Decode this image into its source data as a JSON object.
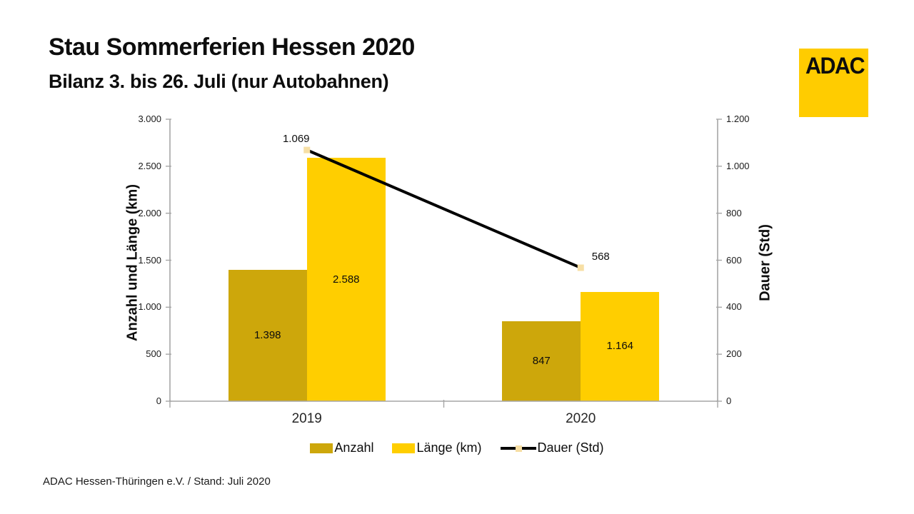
{
  "header": {
    "title": "Stau Sommerferien Hessen 2020",
    "subtitle": "Bilanz 3. bis 26. Juli (nur Autobahnen)"
  },
  "logo": {
    "text": "ADAC",
    "background": "#FFCC00"
  },
  "footer": {
    "text": "ADAC Hessen-Thüringen e.V. / Stand: Juli 2020"
  },
  "chart_data": {
    "type": "combo",
    "categories": [
      "2019",
      "2020"
    ],
    "series": [
      {
        "name": "Anzahl",
        "kind": "bar",
        "color": "#CDA70B",
        "values": [
          1398,
          847
        ],
        "value_labels": [
          "1.398",
          "847"
        ]
      },
      {
        "name": "Länge (km)",
        "kind": "bar",
        "color": "#FFCE00",
        "values": [
          2588,
          1164
        ],
        "value_labels": [
          "2.588",
          "1.164"
        ]
      },
      {
        "name": "Dauer (Std)",
        "kind": "line",
        "axis": "right",
        "line_color": "#000000",
        "marker_color": "#F7DFA5",
        "values": [
          1069,
          568
        ],
        "value_labels": [
          "1.069",
          "568"
        ]
      }
    ],
    "left_axis": {
      "title": "Anzahl und Länge (km)",
      "min": 0,
      "max": 3000,
      "tick_labels": [
        "3.000",
        "2.500",
        "2.000",
        "1.500",
        "1.000",
        "500",
        "0"
      ]
    },
    "right_axis": {
      "title": "Dauer (Std)",
      "min": 0,
      "max": 1200,
      "tick_labels": [
        "1.200",
        "1.000",
        "800",
        "600",
        "400",
        "200",
        "0"
      ]
    },
    "axis_color": "#A6A6A6",
    "grid": false,
    "legend_position": "bottom"
  }
}
